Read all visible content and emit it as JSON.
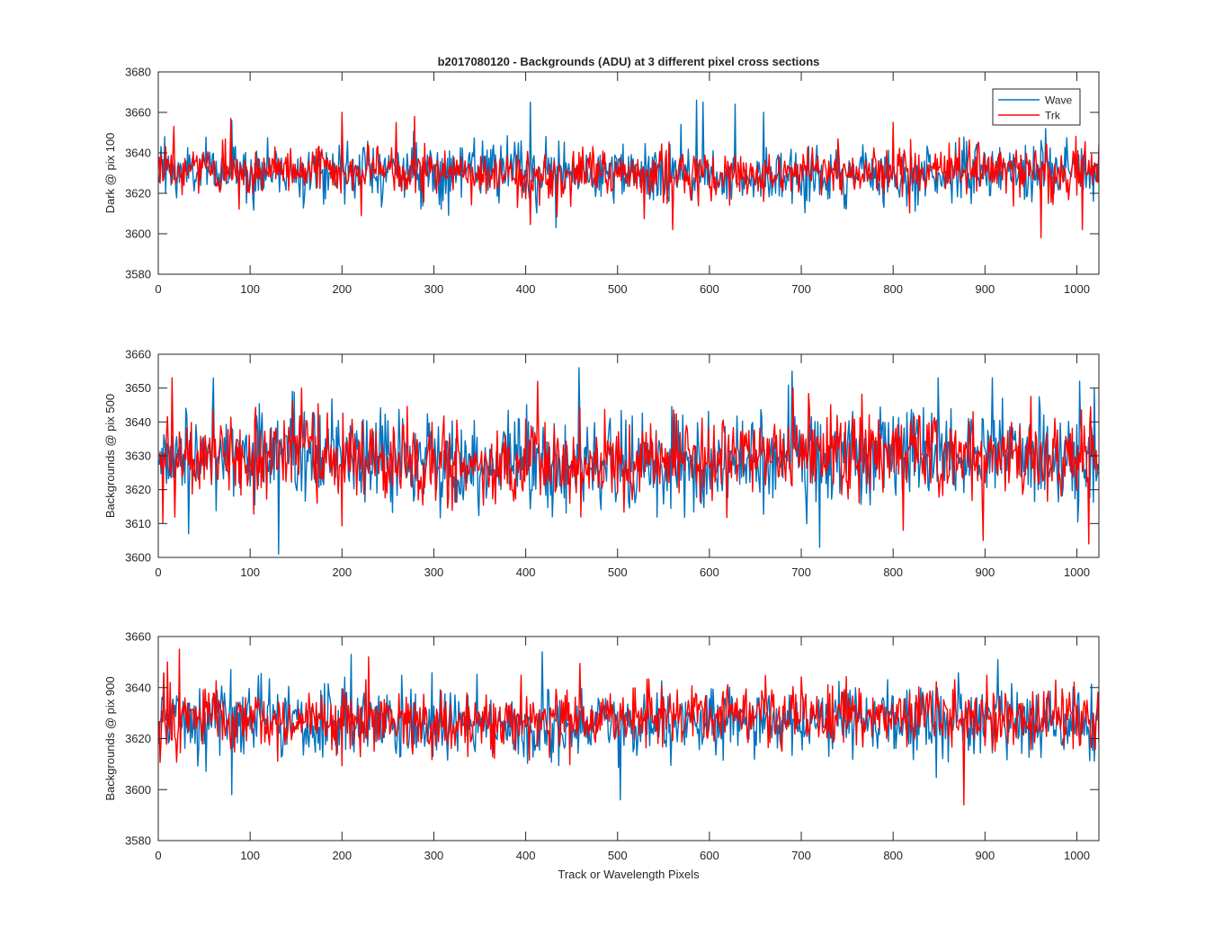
{
  "figure": {
    "title": "b2017080120 - Backgrounds (ADU) at 3 different pixel cross sections"
  },
  "colors": {
    "wave": "#0072bd",
    "trk": "#ff0000",
    "axis": "#262626",
    "background": "#ffffff"
  },
  "legend": {
    "location": "top-right of top panel",
    "entries": [
      "Wave",
      "Trk"
    ]
  },
  "chart_data": [
    {
      "type": "line",
      "title": "b2017080120 - Backgrounds (ADU) at 3 different pixel cross sections",
      "xlabel": "",
      "ylabel": "Dark @ pix 100",
      "xlim": [
        0,
        1024
      ],
      "ylim": [
        3580,
        3680
      ],
      "xticks": [
        0,
        100,
        200,
        300,
        400,
        500,
        600,
        700,
        800,
        900,
        1000
      ],
      "yticks": [
        3580,
        3600,
        3620,
        3640,
        3660,
        3680
      ],
      "grid": false,
      "legend": "top-right",
      "n_points": 1024,
      "series": [
        {
          "name": "Wave",
          "color": "#0072bd",
          "mean": 3630,
          "noise_std": 7,
          "x": [
            6,
            79,
            199,
            260,
            404,
            432,
            568,
            585,
            592,
            627,
            658,
            965
          ],
          "y": [
            3648,
            3656,
            3655,
            3640,
            3665,
            3603,
            3654,
            3666,
            3665,
            3664,
            3660,
            3652
          ]
        },
        {
          "name": "Trk",
          "color": "#ff0000",
          "mean": 3630,
          "noise_std": 6,
          "x": [
            16,
            78,
            199,
            220,
            258,
            278,
            559,
            799,
            960,
            1005
          ],
          "y": [
            3653,
            3657,
            3660,
            3609,
            3655,
            3658,
            3602,
            3655,
            3598,
            3602
          ]
        }
      ]
    },
    {
      "type": "line",
      "xlabel": "",
      "ylabel": "Backgrounds @ pix 500",
      "xlim": [
        0,
        1024
      ],
      "ylim": [
        3600,
        3660
      ],
      "xticks": [
        0,
        100,
        200,
        300,
        400,
        500,
        600,
        700,
        800,
        900,
        1000
      ],
      "yticks": [
        3600,
        3610,
        3620,
        3630,
        3640,
        3650,
        3660
      ],
      "grid": false,
      "n_points": 1024,
      "series": [
        {
          "name": "Wave",
          "color": "#0072bd",
          "mean": 3629,
          "noise_std": 7,
          "x": [
            32,
            59,
            130,
            457,
            689,
            719,
            848,
            907,
            1002,
            1018
          ],
          "y": [
            3607,
            3653,
            3601,
            3656,
            3655,
            3603,
            3653,
            3653,
            3652,
            3650
          ]
        },
        {
          "name": "Trk",
          "color": "#ff0000",
          "mean": 3629,
          "noise_std": 6,
          "x": [
            4,
            14,
            145,
            155,
            412,
            690,
            897,
            1012
          ],
          "y": [
            3610,
            3653,
            3646,
            3650,
            3652,
            3650,
            3605,
            3604
          ]
        }
      ]
    },
    {
      "type": "line",
      "xlabel": "Track or Wavelength Pixels",
      "ylabel": "Backgrounds @ pix 900",
      "xlim": [
        0,
        1024
      ],
      "ylim": [
        3580,
        3660
      ],
      "xticks": [
        0,
        100,
        200,
        300,
        400,
        500,
        600,
        700,
        800,
        900,
        1000
      ],
      "yticks": [
        3580,
        3600,
        3620,
        3640,
        3660
      ],
      "grid": false,
      "n_points": 1024,
      "series": [
        {
          "name": "Wave",
          "color": "#0072bd",
          "mean": 3626,
          "noise_std": 7,
          "x": [
            79,
            209,
            417,
            502,
            913
          ],
          "y": [
            3598,
            3653,
            3654,
            3596,
            3651
          ]
        },
        {
          "name": "Trk",
          "color": "#ff0000",
          "mean": 3628,
          "noise_std": 6,
          "x": [
            9,
            22,
            228,
            876
          ],
          "y": [
            3650,
            3655,
            3652,
            3594
          ]
        }
      ]
    }
  ]
}
